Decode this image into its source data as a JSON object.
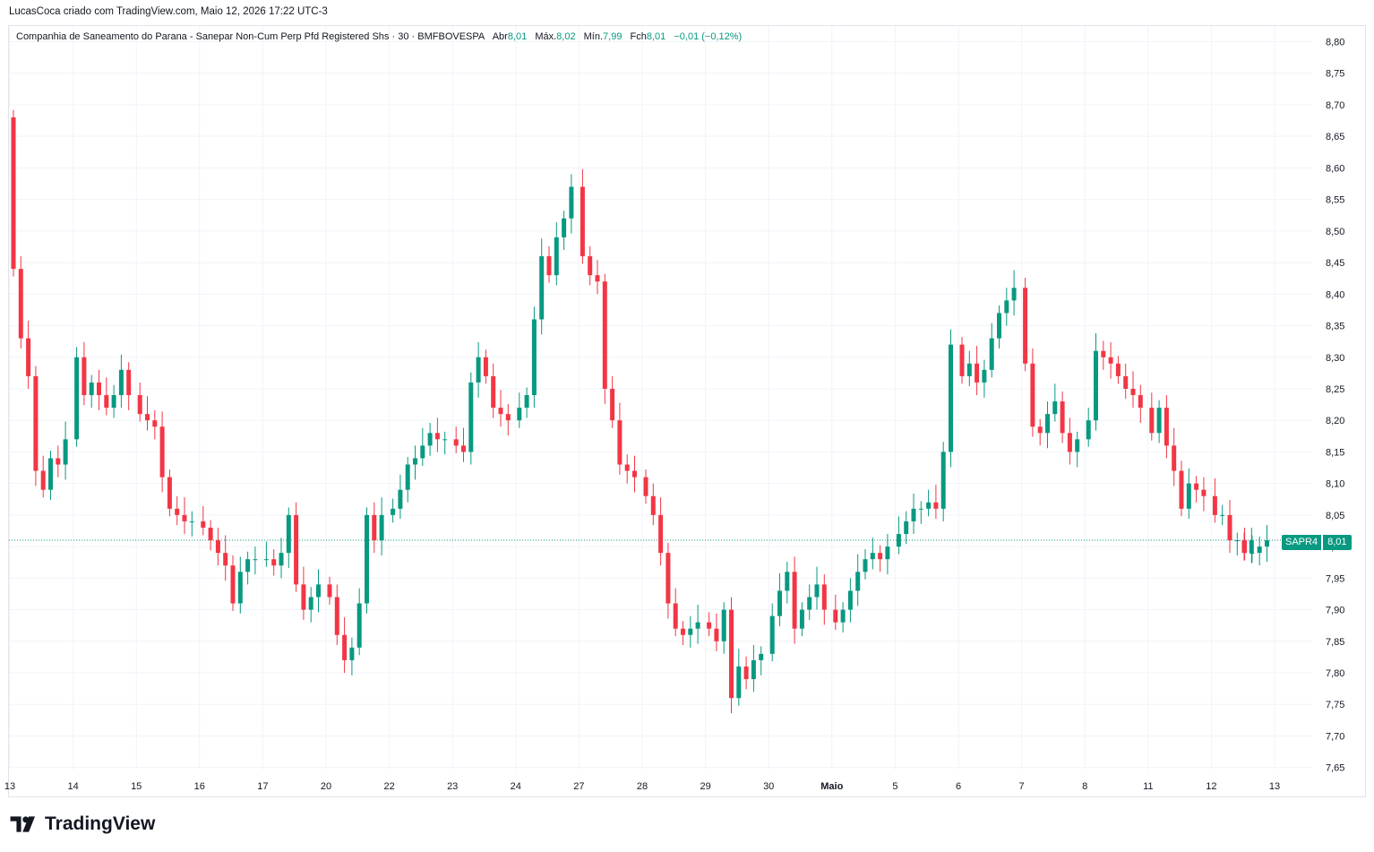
{
  "credit": "LucasCoca criado com TradingView.com, Maio 12, 2026 17:22 UTC-3",
  "legend": {
    "title": "Companhia de Saneamento do Parana - Sanepar Non-Cum Perp Pfd Registered Shs",
    "interval": "30",
    "exchange": "BMFBOVESPA",
    "open_label": "Abr",
    "open": "8,01",
    "high_label": "Máx.",
    "high": "8,02",
    "low_label": "Mín.",
    "low": "7,99",
    "close_label": "Fch",
    "close": "8,01",
    "change": "−0,01 (−0,12%)"
  },
  "price_tag": {
    "symbol": "SAPR4",
    "price": "8,01"
  },
  "logo": {
    "text": "TradingView"
  },
  "colors": {
    "up": "#089981",
    "down": "#f23645",
    "grid": "#f0f3fa"
  },
  "chart_data": {
    "type": "candlestick",
    "y_ticks": [
      "8,80",
      "8,75",
      "8,70",
      "8,65",
      "8,60",
      "8,55",
      "8,50",
      "8,45",
      "8,40",
      "8,35",
      "8,30",
      "8,25",
      "8,20",
      "8,15",
      "8,10",
      "8,05",
      "8,00",
      "7,95",
      "7,90",
      "7,85",
      "7,80",
      "7,75",
      "7,70",
      "7,65"
    ],
    "ylim": [
      7.64,
      8.82
    ],
    "last_price": 8.01,
    "x_labels": [
      "13",
      "14",
      "15",
      "16",
      "17",
      "20",
      "22",
      "23",
      "24",
      "27",
      "28",
      "29",
      "30",
      "Maio",
      "5",
      "6",
      "7",
      "8",
      "11",
      "12",
      "13"
    ],
    "x_bold": [
      "Maio"
    ],
    "day_segments": [
      {
        "label": "13",
        "start": 8.68,
        "path": [
          8.44,
          8.33,
          8.27,
          8.12,
          8.09,
          8.14,
          8.13,
          8.17
        ]
      },
      {
        "label": "14",
        "start": 8.17,
        "path": [
          8.3,
          8.24,
          8.26,
          8.24,
          8.22,
          8.24,
          8.28,
          8.24
        ]
      },
      {
        "label": "15",
        "start": 8.24,
        "path": [
          8.21,
          8.2,
          8.19,
          8.11,
          8.06,
          8.05,
          8.04,
          8.04
        ]
      },
      {
        "label": "16",
        "start": 8.04,
        "path": [
          8.03,
          8.01,
          7.99,
          7.97,
          7.91,
          7.96,
          7.98,
          7.98
        ]
      },
      {
        "label": "17",
        "start": 7.98,
        "path": [
          7.98,
          7.97,
          7.99,
          8.05,
          7.94,
          7.9,
          7.92,
          7.94
        ]
      },
      {
        "label": "20",
        "start": 7.94,
        "path": [
          7.92,
          7.86,
          7.82,
          7.84,
          7.91,
          8.05,
          8.01,
          8.05
        ]
      },
      {
        "label": "22",
        "start": 8.05,
        "path": [
          8.06,
          8.09,
          8.13,
          8.14,
          8.16,
          8.18,
          8.17,
          8.17
        ]
      },
      {
        "label": "23",
        "start": 8.17,
        "path": [
          8.16,
          8.15,
          8.26,
          8.3,
          8.27,
          8.22,
          8.21,
          8.2
        ]
      },
      {
        "label": "24",
        "start": 8.2,
        "path": [
          8.22,
          8.24,
          8.36,
          8.46,
          8.43,
          8.49,
          8.52,
          8.57
        ]
      },
      {
        "label": "27",
        "start": 8.57,
        "path": [
          8.46,
          8.43,
          8.42,
          8.25,
          8.2,
          8.13,
          8.12,
          8.11
        ]
      },
      {
        "label": "28",
        "start": 8.11,
        "path": [
          8.08,
          8.05,
          7.99,
          7.91,
          7.87,
          7.86,
          7.87,
          7.88
        ]
      },
      {
        "label": "29",
        "start": 7.88,
        "path": [
          7.87,
          7.85,
          7.9,
          7.76,
          7.81,
          7.79,
          7.82,
          7.83
        ]
      },
      {
        "label": "30",
        "start": 7.83,
        "path": [
          7.89,
          7.93,
          7.96,
          7.87,
          7.9,
          7.92,
          7.94,
          7.9
        ]
      },
      {
        "label": "Maio",
        "start": 7.9,
        "path": [
          7.88,
          7.9,
          7.93,
          7.96,
          7.98,
          7.99,
          7.98,
          8.0
        ]
      },
      {
        "label": "5",
        "start": 8.0,
        "path": [
          8.02,
          8.04,
          8.06,
          8.06,
          8.07,
          8.06,
          8.15,
          8.32
        ]
      },
      {
        "label": "6",
        "start": 8.32,
        "path": [
          8.27,
          8.29,
          8.26,
          8.28,
          8.33,
          8.37,
          8.39,
          8.41
        ]
      },
      {
        "label": "7",
        "start": 8.41,
        "path": [
          8.29,
          8.19,
          8.18,
          8.21,
          8.23,
          8.18,
          8.15,
          8.17
        ]
      },
      {
        "label": "8",
        "start": 8.17,
        "path": [
          8.2,
          8.31,
          8.3,
          8.29,
          8.27,
          8.25,
          8.24,
          8.22
        ]
      },
      {
        "label": "11",
        "start": 8.22,
        "path": [
          8.18,
          8.22,
          8.16,
          8.12,
          8.06,
          8.1,
          8.09,
          8.08
        ]
      },
      {
        "label": "12",
        "start": 8.08,
        "path": [
          8.05,
          8.05,
          8.01,
          8.01,
          7.99,
          7.99,
          8.0,
          8.01
        ]
      }
    ],
    "last_partial": {
      "label": "13",
      "path": [
        7.99,
        8.01
      ]
    }
  }
}
